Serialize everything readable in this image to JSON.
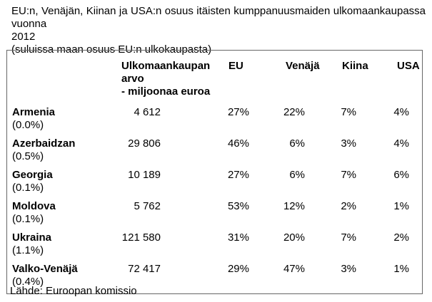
{
  "title": {
    "line1": "EU:n, Venäjän, Kiinan ja USA:n osuus itäisten kumppanuusmaiden ulkomaankaupassa vuonna",
    "line2": "2012",
    "subtitle": "(suluissa maan osuus EU:n ulkokaupasta)"
  },
  "table": {
    "header": {
      "value_col_line1": "Ulkomaankaupan arvo",
      "value_col_line2": "- miljoonaa euroa",
      "eu": "EU",
      "russia": "Venäjä",
      "china": "Kiina",
      "usa": "USA"
    },
    "rows": [
      {
        "country": "Armenia",
        "eu_trade_share": "(0.0%)",
        "value": "4 612",
        "eu": "27%",
        "russia": "22%",
        "china": "7%",
        "usa": "4%"
      },
      {
        "country": "Azerbaidzan",
        "eu_trade_share": "(0.5%)",
        "value": "29 806",
        "eu": "46%",
        "russia": "6%",
        "china": "3%",
        "usa": "4%"
      },
      {
        "country": "Georgia",
        "eu_trade_share": "(0.1%)",
        "value": "10 189",
        "eu": "27%",
        "russia": "6%",
        "china": "7%",
        "usa": "6%"
      },
      {
        "country": "Moldova",
        "eu_trade_share": "(0.1%)",
        "value": "5 762",
        "eu": "53%",
        "russia": "12%",
        "china": "2%",
        "usa": "1%"
      },
      {
        "country": "Ukraina",
        "eu_trade_share": "(1.1%)",
        "value": "121 580",
        "eu": "31%",
        "russia": "20%",
        "china": "7%",
        "usa": "2%"
      },
      {
        "country": "Valko-Venäjä",
        "eu_trade_share": "(0.4%)",
        "value": "72 417",
        "eu": "29%",
        "russia": "47%",
        "china": "3%",
        "usa": "1%"
      }
    ]
  },
  "footer": {
    "source": "Lähde: Euroopan komissio"
  },
  "colors": {
    "text": "#000000",
    "table_border": "#666666",
    "background": "#ffffff"
  }
}
